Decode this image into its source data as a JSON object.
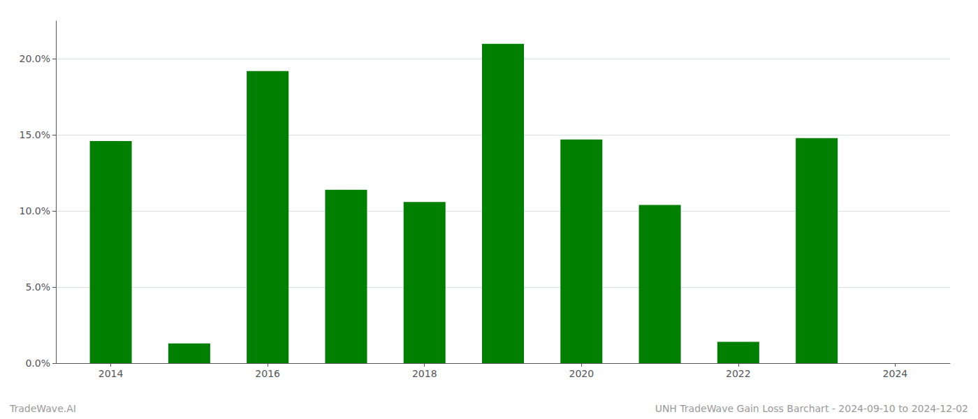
{
  "chart_data": {
    "type": "bar",
    "x": [
      2014,
      2015,
      2016,
      2017,
      2018,
      2019,
      2020,
      2021,
      2022,
      2023,
      2024
    ],
    "values": [
      0.146,
      0.013,
      0.192,
      0.114,
      0.106,
      0.21,
      0.147,
      0.104,
      0.014,
      0.148,
      null
    ],
    "color": "#008000",
    "xlim": [
      2013.3,
      2024.7
    ],
    "xticks": [
      2014,
      2016,
      2018,
      2020,
      2022,
      2024
    ],
    "ylim": [
      0,
      0.225
    ],
    "yticks": [
      {
        "value": 0.0,
        "label": "0.0%"
      },
      {
        "value": 0.05,
        "label": "5.0%"
      },
      {
        "value": 0.1,
        "label": "10.0%"
      },
      {
        "value": 0.15,
        "label": "15.0%"
      },
      {
        "value": 0.2,
        "label": "20.0%"
      }
    ],
    "grid": true,
    "annotations": [
      "TradeWave.AI",
      "UNH TradeWave Gain Loss Barchart - 2024-09-10 to 2024-12-02"
    ]
  }
}
